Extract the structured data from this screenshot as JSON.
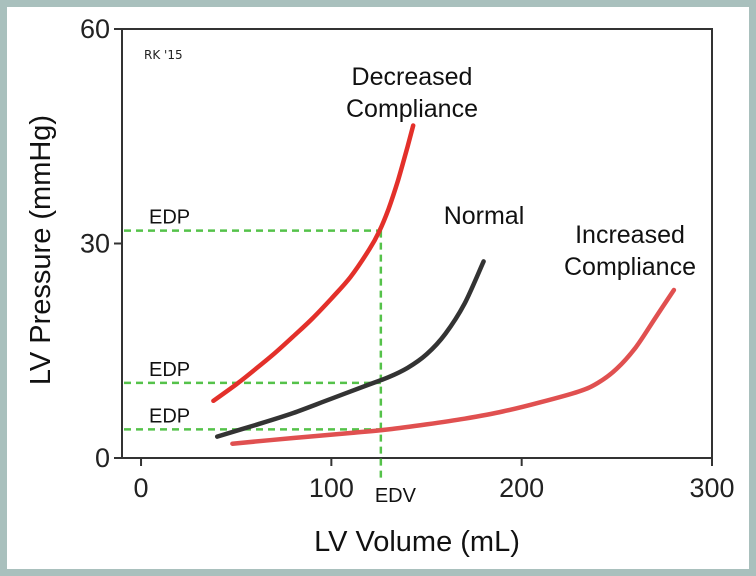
{
  "chart_data": {
    "type": "line",
    "title": "",
    "xlabel": "LV Volume (mL)",
    "ylabel": "LV Pressure (mmHg)",
    "xlim": [
      -10,
      300
    ],
    "ylim": [
      0,
      60
    ],
    "x_ticks": [
      0,
      100,
      200,
      300
    ],
    "y_ticks": [
      0,
      30,
      60
    ],
    "grid": false,
    "credit": "RK '15",
    "series": [
      {
        "name": "Decreased Compliance",
        "label_lines": [
          "Decreased",
          "Compliance"
        ],
        "color": "#e3302a",
        "x": [
          38,
          50,
          60,
          70,
          80,
          90,
          100,
          110,
          120,
          125,
          130,
          135,
          140,
          143
        ],
        "y": [
          8,
          10.3,
          12.4,
          14.6,
          17,
          19.5,
          22.3,
          25.3,
          29.2,
          31.6,
          34.8,
          38.8,
          43.5,
          46.5
        ]
      },
      {
        "name": "Normal",
        "label_lines": [
          "Normal"
        ],
        "color": "#333333",
        "x": [
          40,
          60,
          80,
          100,
          120,
          130,
          140,
          150,
          160,
          170,
          180
        ],
        "y": [
          3,
          4.6,
          6.3,
          8.3,
          10.3,
          11.3,
          12.6,
          14.5,
          17.4,
          21.6,
          27.5
        ]
      },
      {
        "name": "Increased Compliance",
        "label_lines": [
          "Increased",
          "Compliance"
        ],
        "color": "#e05050",
        "x": [
          48,
          80,
          110,
          130,
          150,
          170,
          190,
          210,
          230,
          240,
          250,
          260,
          270,
          280
        ],
        "y": [
          2,
          2.8,
          3.5,
          4,
          4.7,
          5.5,
          6.5,
          7.8,
          9.3,
          10.5,
          12.5,
          15.5,
          19.5,
          23.5
        ]
      }
    ],
    "reference_lines": {
      "color": "#55c24a",
      "edv": {
        "label": "EDV",
        "x": 126
      },
      "edp": [
        {
          "label": "EDP",
          "y": 31.8
        },
        {
          "label": "EDP",
          "y": 10.5
        },
        {
          "label": "EDP",
          "y": 4
        }
      ]
    }
  }
}
